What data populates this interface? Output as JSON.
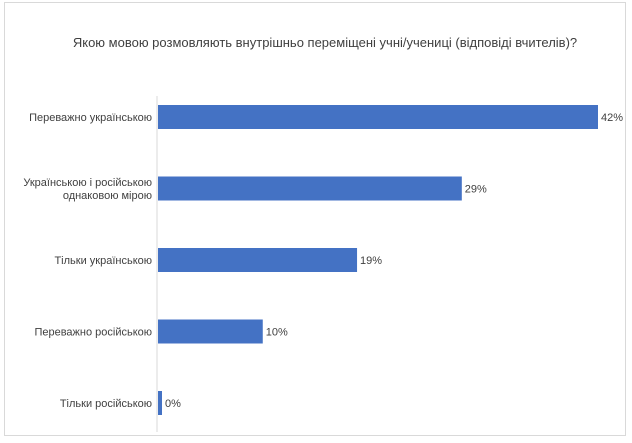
{
  "chart_data": {
    "type": "bar",
    "orientation": "horizontal",
    "title": "Якою мовою розмовляють внутрішньо переміщені учні/учениці (відповіді вчителів)?",
    "categories": [
      "Переважно українською",
      "Українською і російською однаковою мірою",
      "Тільки українською",
      "Переважно російською",
      "Тільки російською"
    ],
    "category_lines": [
      [
        "Переважно українською"
      ],
      [
        "Українською і російською",
        "однаковою мірою"
      ],
      [
        "Тільки українською"
      ],
      [
        "Переважно російською"
      ],
      [
        "Тільки російською"
      ]
    ],
    "values": [
      42,
      29,
      19,
      10,
      0
    ],
    "value_labels": [
      "42%",
      "29%",
      "19%",
      "10%",
      "0%"
    ],
    "xlim": [
      0,
      42
    ],
    "grid": false,
    "legend": "none",
    "bar_color": "#4472c4"
  }
}
